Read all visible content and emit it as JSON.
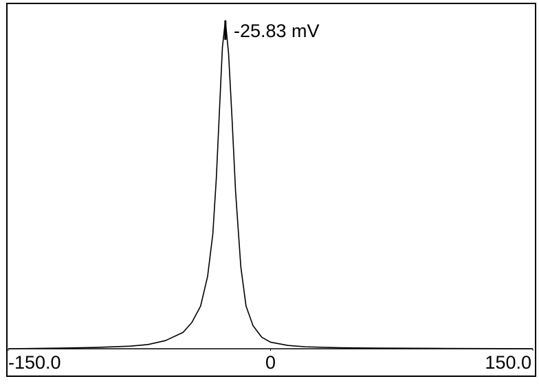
{
  "chart_data": {
    "type": "line",
    "annotation": "-25.83 mV",
    "peak": -25.83,
    "x": [
      -150,
      -120,
      -100,
      -80,
      -70,
      -60,
      -50,
      -45,
      -40,
      -36,
      -33,
      -31,
      -29,
      -27.5,
      -25.83,
      -24,
      -22,
      -20,
      -17,
      -14,
      -10,
      -5,
      0,
      10,
      20,
      40,
      60,
      100,
      150
    ],
    "series": [
      {
        "color": "#000000",
        "values": [
          0,
          0.2,
          0.4,
          0.8,
          1.3,
          2.5,
          5,
          8,
          13,
          22,
          35,
          52,
          75,
          92,
          100,
          90,
          70,
          48,
          25,
          13,
          7,
          3.5,
          2,
          1,
          0.6,
          0.3,
          0.2,
          0.1,
          0
        ]
      }
    ],
    "xlim": [
      -150,
      150
    ],
    "ylim": [
      0,
      100
    ],
    "xticks": [
      {
        "value": -150,
        "label": "-150.0"
      },
      0,
      {
        "value": 150,
        "label": "150.0"
      }
    ]
  }
}
